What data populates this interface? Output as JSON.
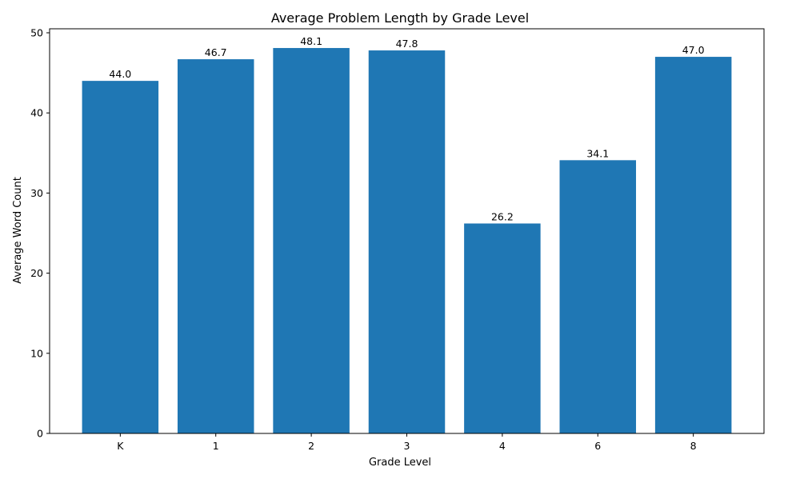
{
  "chart_data": {
    "type": "bar",
    "title": "Average Problem Length by Grade Level",
    "xlabel": "Grade Level",
    "ylabel": "Average Word Count",
    "categories": [
      "K",
      "1",
      "2",
      "3",
      "4",
      "6",
      "8"
    ],
    "values": [
      44.0,
      46.7,
      48.1,
      47.8,
      26.2,
      34.1,
      47.0
    ],
    "data_labels": [
      "44.0",
      "46.7",
      "48.1",
      "47.8",
      "26.2",
      "34.1",
      "47.0"
    ],
    "ylim": [
      0,
      50.5
    ],
    "yticks": [
      0,
      10,
      20,
      30,
      40,
      50
    ],
    "grid": false,
    "legend": "none",
    "bar_color": "#1f77b4"
  }
}
